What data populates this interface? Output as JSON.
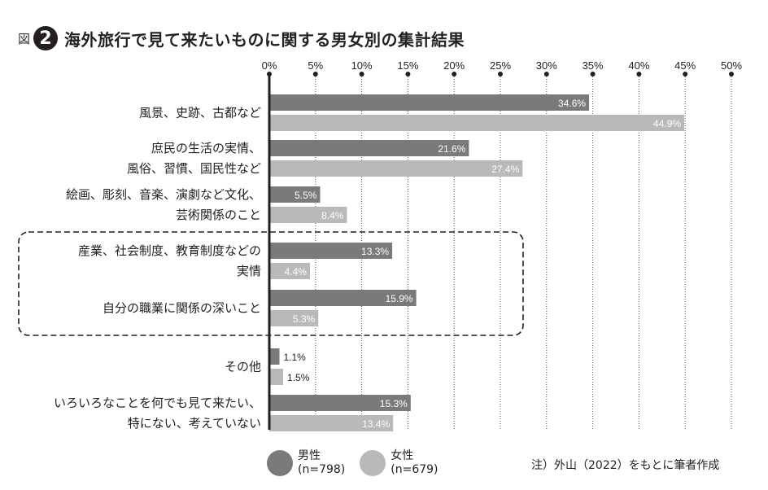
{
  "header": {
    "prefix": "図",
    "number": "2",
    "title": "海外旅行で見て来たいものに関する男女別の集計結果"
  },
  "colors": {
    "male": "#7a7a7a",
    "female": "#b9b9b9",
    "axis": "#231f20",
    "grid": "#555555"
  },
  "chart_data": {
    "type": "bar",
    "orientation": "horizontal",
    "title": "海外旅行で見て来たいものに関する男女別の集計結果",
    "xlim": [
      0,
      50
    ],
    "x_ticks": [
      "0%",
      "5%",
      "10%",
      "15%",
      "20%",
      "25%",
      "30%",
      "35%",
      "40%",
      "45%",
      "50%"
    ],
    "categories": [
      [
        "風景、史跡、古都など"
      ],
      [
        "庶民の生活の実情、",
        "風俗、習慣、国民性など"
      ],
      [
        "絵画、彫刻、音楽、演劇など文化、",
        "芸術関係のこと"
      ],
      [
        "産業、社会制度、教育制度などの",
        "実情"
      ],
      [
        "自分の職業に関係の深いこと"
      ],
      [
        "その他"
      ],
      [
        "いろいろなことを何でも見て来たい、",
        "特にない、考えていない"
      ]
    ],
    "series": [
      {
        "name": "男性",
        "n": "(n=798)",
        "values": [
          34.6,
          21.6,
          5.5,
          13.3,
          15.9,
          1.1,
          15.3
        ]
      },
      {
        "name": "女性",
        "n": "(n=679)",
        "values": [
          44.9,
          27.4,
          8.4,
          4.4,
          5.3,
          1.5,
          13.4
        ]
      }
    ],
    "highlight": "dashed box around categories 4 and 5",
    "grid": "vertical dotted lines",
    "legend_position": "bottom-left"
  },
  "legend": {
    "male": {
      "label": "男性",
      "n": "(n=798)"
    },
    "female": {
      "label": "女性",
      "n": "(n=679)"
    }
  },
  "note": "注）外山（2022）をもとに筆者作成"
}
